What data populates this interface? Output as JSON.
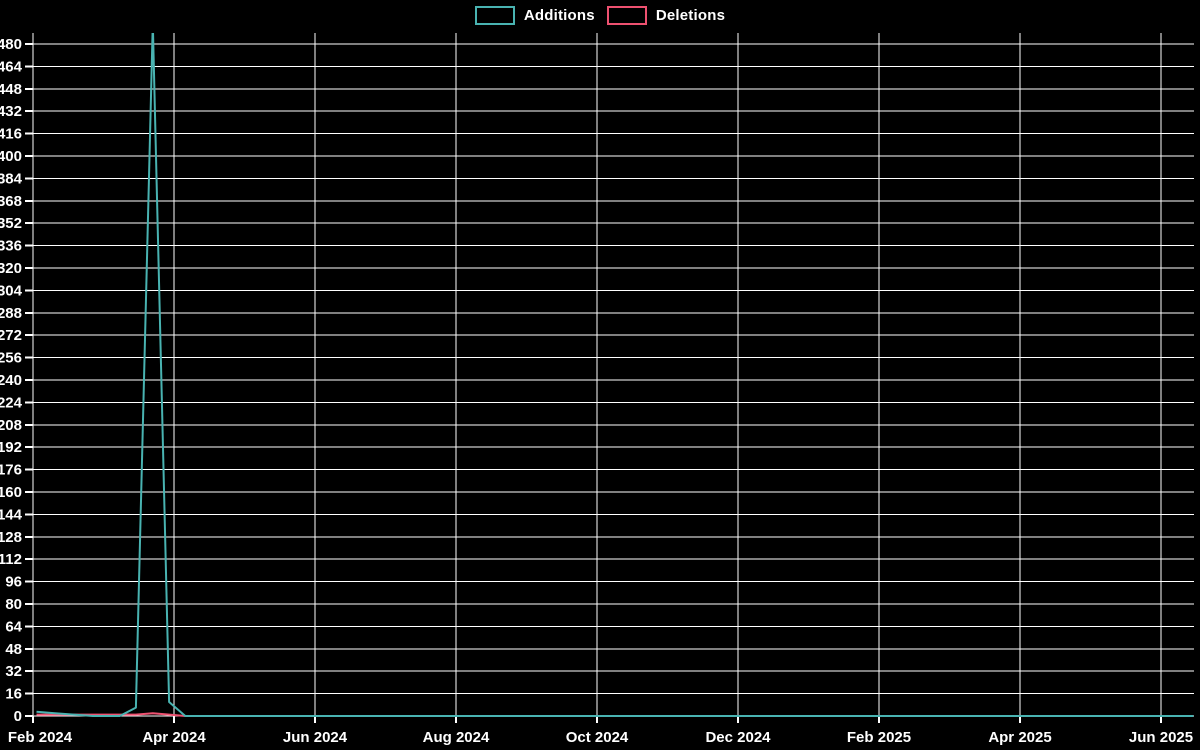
{
  "legend": {
    "items": [
      {
        "label": "Additions",
        "color": "#49b3b1"
      },
      {
        "label": "Deletions",
        "color": "#ee5170"
      }
    ]
  },
  "chart_data": {
    "type": "line",
    "title": "",
    "xlabel": "",
    "ylabel": "",
    "background_color": "#000000",
    "grid": true,
    "grid_color": "#ffffff",
    "text_color": "#ffffff",
    "legend_position": "top-center",
    "x_tick_labels": [
      "Feb 2024",
      "Apr 2024",
      "Jun 2024",
      "Aug 2024",
      "Oct 2024",
      "Dec 2024",
      "Feb 2025",
      "Apr 2025",
      "Jun 2025"
    ],
    "x_range_months": 16,
    "y_ticks": [
      0,
      16,
      32,
      48,
      64,
      80,
      96,
      112,
      128,
      144,
      160,
      176,
      192,
      208,
      224,
      240,
      256,
      272,
      288,
      304,
      320,
      336,
      352,
      368,
      384,
      400,
      416,
      432,
      448,
      464,
      480
    ],
    "ylim": [
      0,
      488
    ],
    "series": [
      {
        "name": "Additions",
        "color": "#49b3b1",
        "points_months_value": [
          [
            0.05,
            3
          ],
          [
            0.31,
            2
          ],
          [
            0.58,
            1
          ],
          [
            0.85,
            0
          ],
          [
            1.23,
            0
          ],
          [
            1.46,
            6
          ],
          [
            1.7,
            495
          ],
          [
            1.93,
            10
          ],
          [
            2.16,
            0
          ],
          [
            16.46,
            0
          ]
        ]
      },
      {
        "name": "Deletions",
        "color": "#ee5170",
        "points_months_value": [
          [
            0.05,
            1
          ],
          [
            1.46,
            1
          ],
          [
            1.7,
            2
          ],
          [
            1.93,
            1
          ],
          [
            2.16,
            0
          ],
          [
            16.46,
            0
          ]
        ]
      }
    ]
  }
}
